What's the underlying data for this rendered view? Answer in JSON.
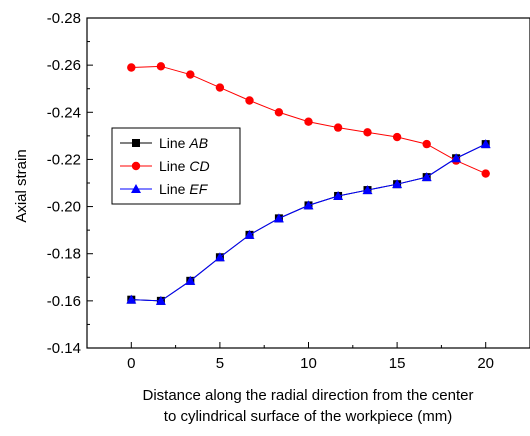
{
  "chart_data": {
    "type": "line",
    "xlabel": [
      "Distance along the radial direction from the center",
      "to cylindrical surface of the workpiece (mm)"
    ],
    "ylabel": "Axial strain",
    "xlim": [
      -2.5,
      22.5
    ],
    "ylim": [
      -0.14,
      -0.28
    ],
    "xticks": [
      "0",
      "5",
      "10",
      "15",
      "20"
    ],
    "xtick_values": [
      0,
      5,
      10,
      15,
      20
    ],
    "yticks": [
      "-0.28",
      "-0.26",
      "-0.24",
      "-0.22",
      "-0.20",
      "-0.18",
      "-0.16",
      "-0.14"
    ],
    "ytick_values": [
      -0.28,
      -0.26,
      -0.24,
      -0.22,
      -0.2,
      -0.18,
      -0.16,
      -0.14
    ],
    "legend_position": "left",
    "series": [
      {
        "name": "Line ",
        "italic": "AB",
        "marker": "square",
        "color": "#000000",
        "x": [
          0,
          1.67,
          3.33,
          5,
          6.67,
          8.33,
          10,
          11.67,
          13.33,
          15,
          16.67,
          18.33,
          20
        ],
        "values": [
          -0.1605,
          -0.16,
          -0.1685,
          -0.1785,
          -0.188,
          -0.195,
          -0.2005,
          -0.2045,
          -0.207,
          -0.2095,
          -0.2125,
          -0.2205,
          -0.2265
        ]
      },
      {
        "name": "Line ",
        "italic": "CD",
        "marker": "circle",
        "color": "#ff0000",
        "x": [
          0,
          1.67,
          3.33,
          5,
          6.67,
          8.33,
          10,
          11.67,
          13.33,
          15,
          16.67,
          18.33,
          20
        ],
        "values": [
          -0.259,
          -0.2595,
          -0.256,
          -0.2505,
          -0.245,
          -0.24,
          -0.236,
          -0.2335,
          -0.2315,
          -0.2295,
          -0.2265,
          -0.2195,
          -0.214
        ]
      },
      {
        "name": "Line ",
        "italic": "EF",
        "marker": "triangle",
        "color": "#0000ff",
        "x": [
          0,
          1.67,
          3.33,
          5,
          6.67,
          8.33,
          10,
          11.67,
          13.33,
          15,
          16.67,
          18.33,
          20
        ],
        "values": [
          -0.1605,
          -0.16,
          -0.1685,
          -0.1785,
          -0.188,
          -0.195,
          -0.2005,
          -0.2045,
          -0.207,
          -0.2095,
          -0.2125,
          -0.2205,
          -0.2265
        ]
      }
    ]
  }
}
